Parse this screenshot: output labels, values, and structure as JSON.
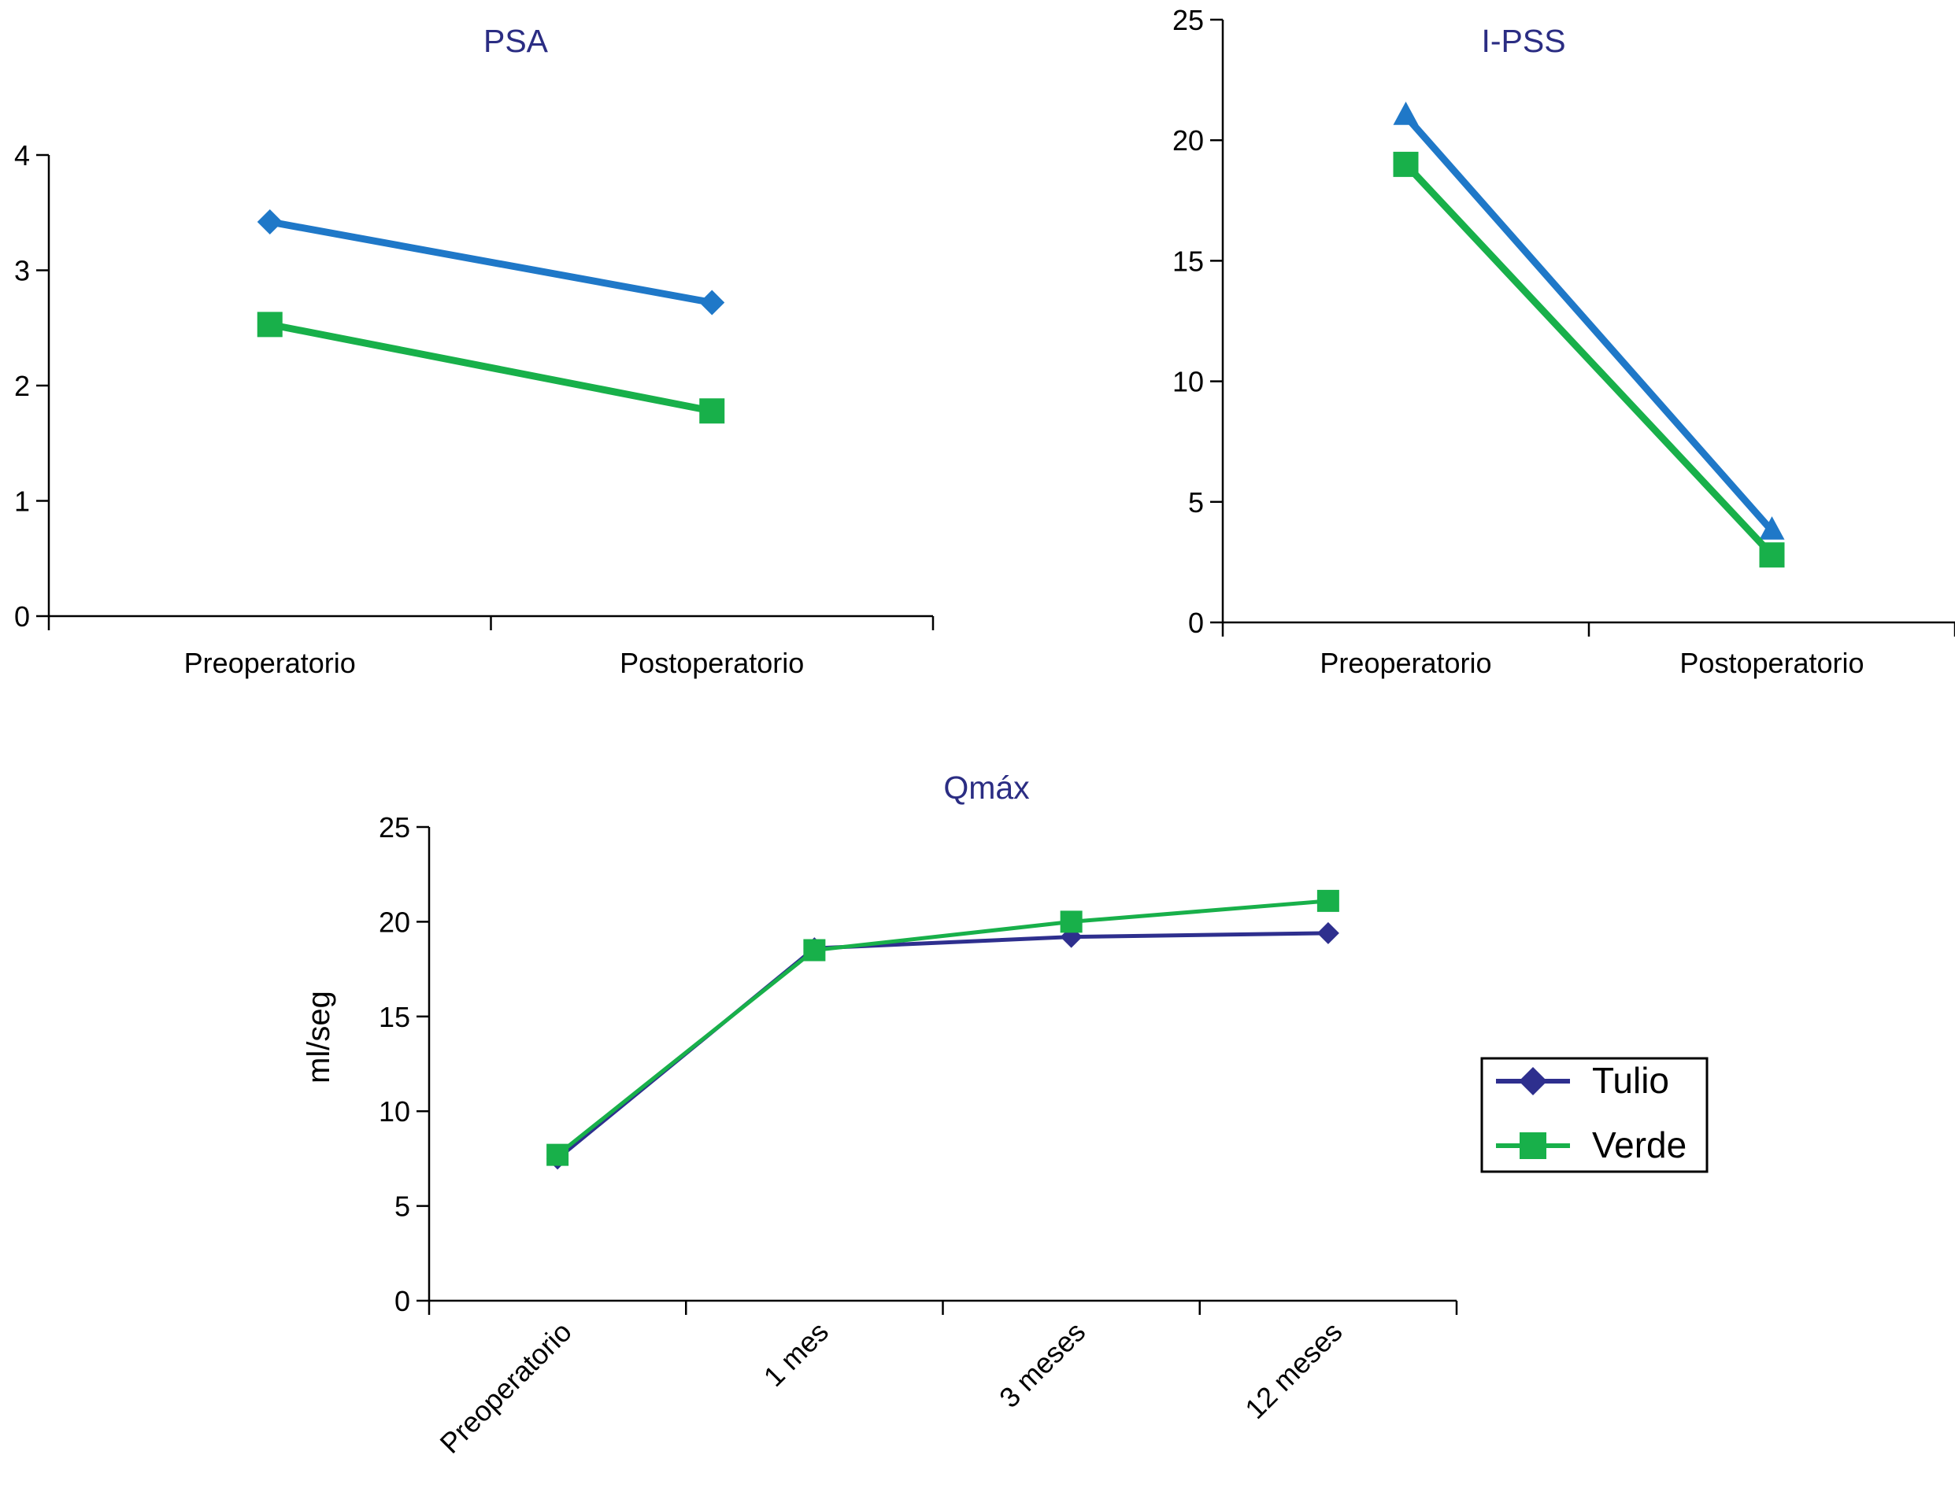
{
  "colors": {
    "title": "#2b2d83",
    "axis": "#000000",
    "tulio_top": "#1f78c8",
    "verde": "#18b04a",
    "tulio_bottom": "#2e2f8e"
  },
  "chart_data": [
    {
      "type": "line",
      "title": "PSA",
      "categories": [
        "Preoperatorio",
        "Postoperatorio"
      ],
      "ylim": [
        0,
        4
      ],
      "yticks": [
        "0",
        "1",
        "2",
        "3",
        "4"
      ],
      "xlabel": "",
      "ylabel": "",
      "grid": false,
      "series": [
        {
          "values": [
            3.42,
            2.72
          ],
          "marker": "diamond",
          "color": "#1f78c8"
        },
        {
          "values": [
            2.53,
            1.78
          ],
          "marker": "square",
          "color": "#18b04a"
        }
      ]
    },
    {
      "type": "line",
      "title": "I-PSS",
      "categories": [
        "Preoperatorio",
        "Postoperatorio"
      ],
      "ylim": [
        0,
        25
      ],
      "yticks": [
        "0",
        "5",
        "10",
        "15",
        "20",
        "25"
      ],
      "xlabel": "",
      "ylabel": "",
      "grid": false,
      "series": [
        {
          "values": [
            21.0,
            3.8
          ],
          "marker": "triangle",
          "color": "#1f78c8"
        },
        {
          "values": [
            19.0,
            2.8
          ],
          "marker": "square",
          "color": "#18b04a"
        }
      ]
    },
    {
      "type": "line",
      "title": "Qmáx",
      "categories": [
        "Preoperatorio",
        "1 mes",
        "3 meses",
        "12 meses"
      ],
      "ylim": [
        0,
        25
      ],
      "yticks": [
        "0",
        "5",
        "10",
        "15",
        "20",
        "25"
      ],
      "xlabel": "",
      "ylabel": "ml/seg",
      "grid": false,
      "legend": "right",
      "series": [
        {
          "name": "Tulio",
          "values": [
            7.5,
            18.6,
            19.2,
            19.4
          ],
          "marker": "diamond",
          "color": "#2e2f8e"
        },
        {
          "name": "Verde",
          "values": [
            7.7,
            18.5,
            20.0,
            21.1
          ],
          "marker": "square",
          "color": "#18b04a"
        }
      ]
    }
  ]
}
